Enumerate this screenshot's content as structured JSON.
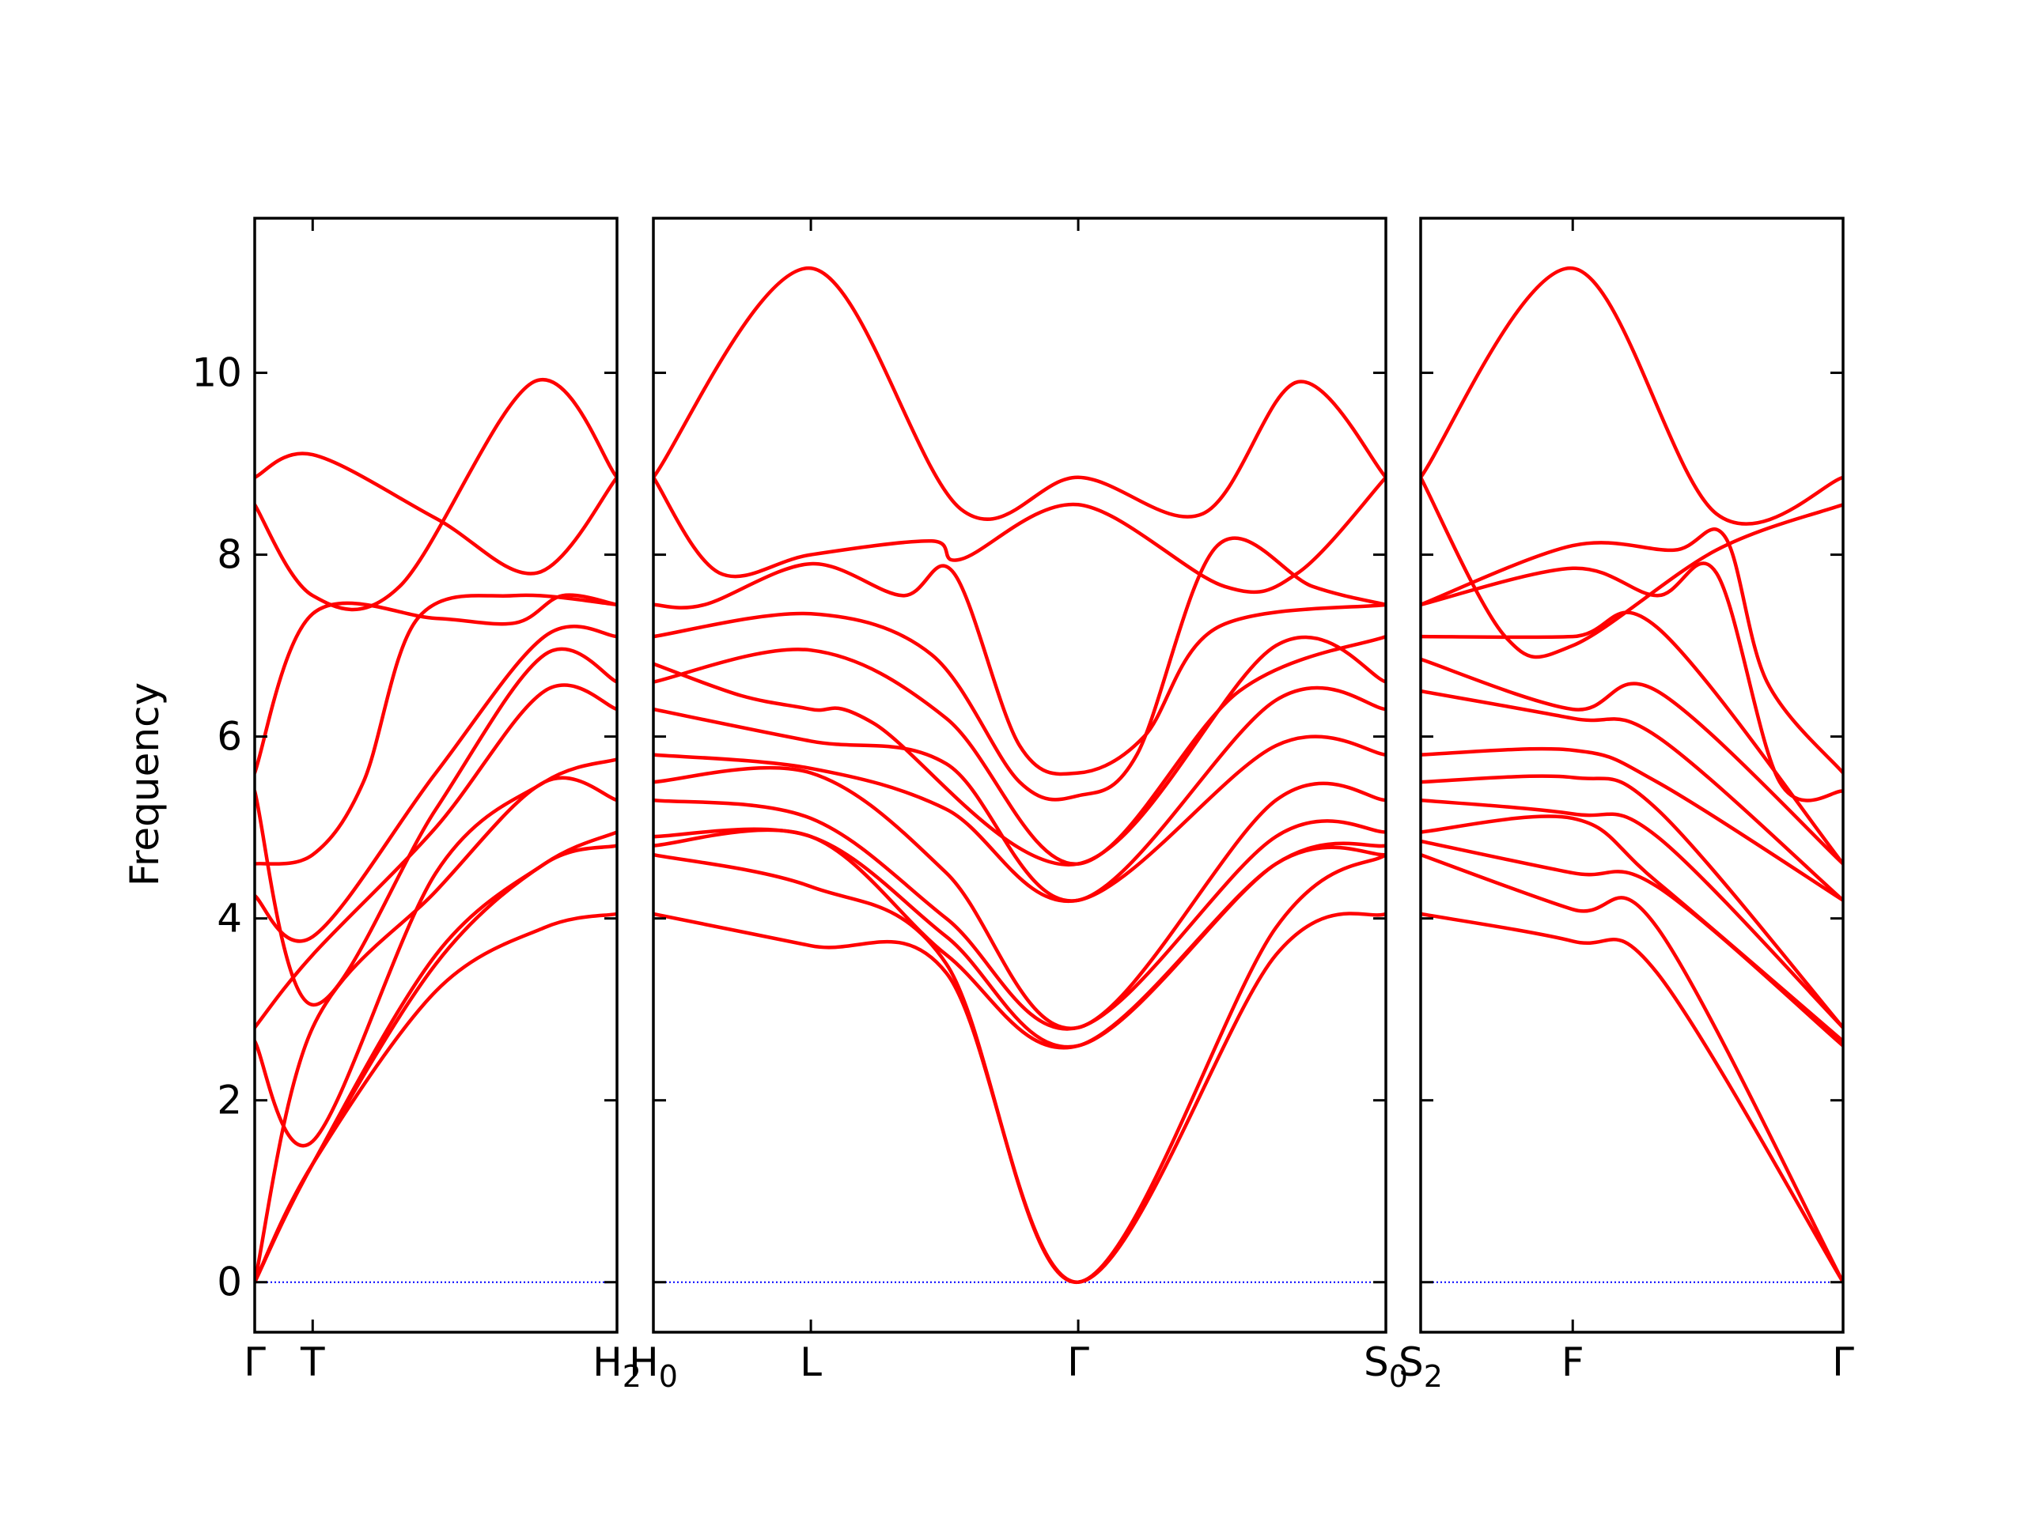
{
  "chart_data": {
    "type": "line",
    "title": "",
    "ylabel": "Frequency",
    "ylim": [
      -0.55,
      11.7
    ],
    "yticks": [
      0,
      2,
      4,
      6,
      8,
      10
    ],
    "line_color": "#ff0000",
    "zero_line_color": "#0000ff",
    "grid": false,
    "panels": [
      {
        "xlim": [
          0,
          1
        ],
        "ticks": [
          {
            "pos": 0,
            "label": "Γ"
          },
          {
            "pos": 0.16,
            "label": "T"
          },
          {
            "pos": 1,
            "label": "H",
            "sub": "2"
          }
        ],
        "series": [
          {
            "x": [
              0,
              0.16,
              0.5,
              0.78,
              1
            ],
            "y": [
              8.85,
              9.1,
              8.4,
              7.8,
              8.85
            ]
          },
          {
            "x": [
              0,
              0.16,
              0.4,
              0.77,
              1
            ],
            "y": [
              8.55,
              7.55,
              7.65,
              9.9,
              8.85
            ]
          },
          {
            "x": [
              0,
              0.16,
              0.5,
              0.72,
              0.85,
              1
            ],
            "y": [
              5.6,
              7.35,
              7.3,
              7.25,
              7.55,
              7.45
            ]
          },
          {
            "x": [
              0,
              0.16,
              0.3,
              0.45,
              0.72,
              1
            ],
            "y": [
              4.6,
              4.7,
              5.5,
              7.3,
              7.55,
              7.45
            ]
          },
          {
            "x": [
              0,
              0.16,
              0.5,
              0.8,
              1
            ],
            "y": [
              4.25,
              3.8,
              5.6,
              7.1,
              7.1
            ]
          },
          {
            "x": [
              0,
              0.16,
              0.5,
              0.8,
              1
            ],
            "y": [
              5.4,
              3.05,
              5.2,
              6.9,
              6.6
            ]
          },
          {
            "x": [
              0,
              0.16,
              0.5,
              0.8,
              1
            ],
            "y": [
              2.8,
              3.6,
              5.0,
              6.5,
              6.3
            ]
          },
          {
            "x": [
              0,
              0.16,
              0.5,
              0.8,
              1
            ],
            "y": [
              2.65,
              1.55,
              4.5,
              5.5,
              5.75
            ]
          },
          {
            "x": [
              0,
              0.16,
              0.5,
              0.8,
              1
            ],
            "y": [
              0,
              2.8,
              4.3,
              5.5,
              5.3
            ]
          },
          {
            "x": [
              0,
              0.16,
              0.5,
              0.8,
              1
            ],
            "y": [
              0,
              1.3,
              3.6,
              4.6,
              4.95
            ]
          },
          {
            "x": [
              0,
              0.16,
              0.5,
              0.8,
              1
            ],
            "y": [
              0,
              1.3,
              3.5,
              4.6,
              4.8
            ]
          },
          {
            "x": [
              0,
              0.16,
              0.5,
              0.8,
              1
            ],
            "y": [
              0,
              1.3,
              3.2,
              3.9,
              4.05
            ]
          }
        ]
      },
      {
        "xlim": [
          0,
          1
        ],
        "ticks": [
          {
            "pos": 0,
            "label": "H",
            "sub": "0"
          },
          {
            "pos": 0.215,
            "label": "L"
          },
          {
            "pos": 0.58,
            "label": "Γ"
          },
          {
            "pos": 1,
            "label": "S",
            "sub": "0"
          }
        ],
        "series": [
          {
            "x": [
              0,
              0.215,
              0.42,
              0.58,
              0.75,
              0.88,
              1
            ],
            "y": [
              8.85,
              11.15,
              8.5,
              8.85,
              8.45,
              9.9,
              8.85
            ]
          },
          {
            "x": [
              0,
              0.09,
              0.215,
              0.38,
              0.42,
              0.58,
              0.78,
              0.88,
              1
            ],
            "y": [
              8.85,
              7.8,
              8.0,
              8.15,
              7.95,
              8.55,
              7.65,
              7.8,
              8.85
            ]
          },
          {
            "x": [
              0,
              0.07,
              0.215,
              0.34,
              0.41,
              0.5,
              0.58,
              0.67,
              0.77,
              1
            ],
            "y": [
              7.45,
              7.45,
              7.9,
              7.55,
              7.8,
              5.9,
              5.6,
              6.0,
              7.2,
              7.45
            ]
          },
          {
            "x": [
              0,
              0.215,
              0.38,
              0.5,
              0.58,
              0.66,
              0.77,
              0.9,
              1
            ],
            "y": [
              7.1,
              7.35,
              6.9,
              5.5,
              5.35,
              5.8,
              8.1,
              7.65,
              7.45
            ]
          },
          {
            "x": [
              0,
              0.215,
              0.4,
              0.58,
              0.8,
              1
            ],
            "y": [
              6.6,
              6.95,
              6.2,
              4.6,
              6.5,
              7.1
            ]
          },
          {
            "x": [
              0,
              0.12,
              0.215,
              0.3,
              0.58,
              0.85,
              1
            ],
            "y": [
              6.8,
              6.45,
              6.3,
              6.15,
              4.6,
              7.0,
              6.6
            ]
          },
          {
            "x": [
              0,
              0.215,
              0.4,
              0.58,
              0.85,
              1
            ],
            "y": [
              6.3,
              5.95,
              5.7,
              4.2,
              6.4,
              6.3
            ]
          },
          {
            "x": [
              0,
              0.215,
              0.4,
              0.58,
              0.85,
              1
            ],
            "y": [
              5.8,
              5.65,
              5.2,
              4.2,
              5.9,
              5.8
            ]
          },
          {
            "x": [
              0,
              0.215,
              0.4,
              0.58,
              0.85,
              1
            ],
            "y": [
              5.5,
              5.6,
              4.5,
              2.8,
              5.3,
              5.3
            ]
          },
          {
            "x": [
              0,
              0.215,
              0.4,
              0.58,
              0.85,
              1
            ],
            "y": [
              5.3,
              5.1,
              4.0,
              2.8,
              4.9,
              4.95
            ]
          },
          {
            "x": [
              0,
              0.215,
              0.4,
              0.58,
              0.85,
              1
            ],
            "y": [
              4.9,
              4.9,
              3.8,
              2.6,
              4.6,
              4.8
            ]
          },
          {
            "x": [
              0,
              0.215,
              0.4,
              0.58,
              0.85,
              1
            ],
            "y": [
              4.8,
              4.9,
              3.6,
              2.6,
              4.6,
              4.7
            ]
          },
          {
            "x": [
              0,
              0.215,
              0.4,
              0.58,
              0.85,
              1
            ],
            "y": [
              4.7,
              4.35,
              3.5,
              0,
              3.9,
              4.7
            ]
          },
          {
            "x": [
              0,
              0.215,
              0.4,
              0.58,
              0.85,
              1
            ],
            "y": [
              4.05,
              3.7,
              3.4,
              0,
              3.6,
              4.05
            ]
          }
        ]
      },
      {
        "xlim": [
          0,
          1
        ],
        "ticks": [
          {
            "pos": 0,
            "label": "S",
            "sub": "2"
          },
          {
            "pos": 0.36,
            "label": "F"
          },
          {
            "pos": 1,
            "label": "Γ"
          }
        ],
        "series": [
          {
            "x": [
              0,
              0.36,
              0.7,
              1
            ],
            "y": [
              8.85,
              11.15,
              8.45,
              8.85
            ]
          },
          {
            "x": [
              0,
              0.2,
              0.36,
              0.7,
              1
            ],
            "y": [
              8.85,
              7.1,
              7.0,
              8.05,
              8.55
            ]
          },
          {
            "x": [
              0,
              0.36,
              0.6,
              0.72,
              0.82,
              1
            ],
            "y": [
              7.45,
              8.1,
              8.05,
              8.2,
              6.6,
              5.6
            ]
          },
          {
            "x": [
              0,
              0.36,
              0.56,
              0.7,
              0.85,
              1
            ],
            "y": [
              7.45,
              7.85,
              7.55,
              7.8,
              5.5,
              5.4
            ]
          },
          {
            "x": [
              0,
              0.36,
              0.56,
              1
            ],
            "y": [
              7.1,
              7.1,
              7.2,
              4.6
            ]
          },
          {
            "x": [
              0,
              0.36,
              0.56,
              1
            ],
            "y": [
              6.85,
              6.3,
              6.5,
              4.6
            ]
          },
          {
            "x": [
              0,
              0.36,
              0.56,
              1
            ],
            "y": [
              6.5,
              6.2,
              6.0,
              4.2
            ]
          },
          {
            "x": [
              0,
              0.36,
              0.56,
              1
            ],
            "y": [
              5.8,
              5.85,
              5.5,
              4.2
            ]
          },
          {
            "x": [
              0,
              0.36,
              0.56,
              1
            ],
            "y": [
              5.5,
              5.55,
              5.2,
              2.8
            ]
          },
          {
            "x": [
              0,
              0.36,
              0.56,
              1
            ],
            "y": [
              5.3,
              5.15,
              4.9,
              2.8
            ]
          },
          {
            "x": [
              0,
              0.36,
              0.56,
              1
            ],
            "y": [
              4.95,
              5.1,
              4.4,
              2.65
            ]
          },
          {
            "x": [
              0,
              0.36,
              0.56,
              1
            ],
            "y": [
              4.85,
              4.5,
              4.35,
              2.6
            ]
          },
          {
            "x": [
              0,
              0.36,
              0.56,
              1
            ],
            "y": [
              4.7,
              4.1,
              3.9,
              0
            ]
          },
          {
            "x": [
              0,
              0.36,
              0.56,
              1
            ],
            "y": [
              4.05,
              3.75,
              3.4,
              0
            ]
          }
        ]
      }
    ]
  }
}
